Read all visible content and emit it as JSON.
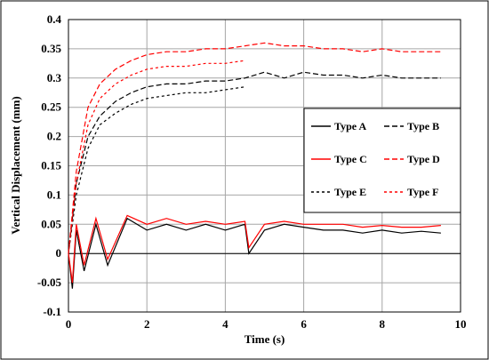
{
  "chart_data": {
    "type": "line",
    "title": "",
    "xlabel": "Time (s)",
    "ylabel": "Vertical Displacement (mm)",
    "xlim": [
      0,
      10
    ],
    "ylim": [
      -0.1,
      0.4
    ],
    "xticks": [
      0,
      2,
      4,
      6,
      8,
      10
    ],
    "yticks": [
      -0.1,
      -0.05,
      0,
      0.05,
      0.1,
      0.15,
      0.2,
      0.25,
      0.3,
      0.35,
      0.4
    ],
    "xtick_labels": [
      "0",
      "2",
      "4",
      "6",
      "8",
      "10"
    ],
    "ytick_labels": [
      "-0.1",
      "-0.05",
      "0",
      "0.05",
      "0.1",
      "0.15",
      "0.2",
      "0.25",
      "0.3",
      "0.35",
      "0.4"
    ],
    "grid": true,
    "legend_position": "right",
    "series": [
      {
        "name": "Type A",
        "color": "#000000",
        "dash": "solid",
        "x": [
          0,
          0.1,
          0.2,
          0.4,
          0.7,
          1.0,
          1.5,
          2.0,
          2.5,
          3.0,
          3.5,
          4.0,
          4.5,
          4.6,
          5.0,
          5.5,
          6.0,
          6.5,
          7.0,
          7.5,
          8.0,
          8.5,
          9.0,
          9.5
        ],
        "y": [
          0,
          -0.06,
          0.04,
          -0.03,
          0.05,
          -0.02,
          0.06,
          0.04,
          0.05,
          0.04,
          0.05,
          0.04,
          0.05,
          0.0,
          0.04,
          0.05,
          0.045,
          0.04,
          0.04,
          0.035,
          0.04,
          0.035,
          0.038,
          0.035
        ]
      },
      {
        "name": "Type B",
        "color": "#000000",
        "dash": "long",
        "x": [
          0,
          0.2,
          0.5,
          0.8,
          1.2,
          1.6,
          2.0,
          2.5,
          3.0,
          3.5,
          4.0,
          4.5,
          5.0,
          5.5,
          6.0,
          6.5,
          7.0,
          7.5,
          8.0,
          8.5,
          9.0,
          9.5
        ],
        "y": [
          0,
          0.12,
          0.2,
          0.235,
          0.26,
          0.275,
          0.285,
          0.29,
          0.29,
          0.295,
          0.295,
          0.3,
          0.31,
          0.3,
          0.31,
          0.305,
          0.305,
          0.3,
          0.305,
          0.3,
          0.3,
          0.3
        ]
      },
      {
        "name": "Type C",
        "color": "#ff0000",
        "dash": "solid",
        "x": [
          0,
          0.1,
          0.2,
          0.4,
          0.7,
          1.0,
          1.5,
          2.0,
          2.5,
          3.0,
          3.5,
          4.0,
          4.5,
          4.6,
          5.0,
          5.5,
          6.0,
          6.5,
          7.0,
          7.5,
          8.0,
          8.5,
          9.0,
          9.5
        ],
        "y": [
          0,
          -0.05,
          0.05,
          -0.02,
          0.06,
          -0.01,
          0.065,
          0.05,
          0.06,
          0.05,
          0.055,
          0.05,
          0.055,
          0.01,
          0.05,
          0.055,
          0.05,
          0.05,
          0.05,
          0.045,
          0.048,
          0.045,
          0.045,
          0.048
        ]
      },
      {
        "name": "Type D",
        "color": "#ff0000",
        "dash": "long",
        "x": [
          0,
          0.2,
          0.5,
          0.8,
          1.2,
          1.6,
          2.0,
          2.5,
          3.0,
          3.5,
          4.0,
          4.5,
          5.0,
          5.5,
          6.0,
          6.5,
          7.0,
          7.5,
          8.0,
          8.5,
          9.0,
          9.5
        ],
        "y": [
          0,
          0.14,
          0.25,
          0.29,
          0.315,
          0.33,
          0.34,
          0.345,
          0.345,
          0.35,
          0.35,
          0.355,
          0.36,
          0.355,
          0.355,
          0.35,
          0.35,
          0.345,
          0.35,
          0.345,
          0.345,
          0.345
        ]
      },
      {
        "name": "Type E",
        "color": "#000000",
        "dash": "short",
        "x": [
          0,
          0.2,
          0.5,
          0.8,
          1.2,
          1.6,
          2.0,
          2.5,
          3.0,
          3.5,
          4.0,
          4.5
        ],
        "y": [
          0,
          0.1,
          0.18,
          0.22,
          0.24,
          0.255,
          0.265,
          0.27,
          0.275,
          0.275,
          0.28,
          0.285
        ]
      },
      {
        "name": "Type F",
        "color": "#ff0000",
        "dash": "short",
        "x": [
          0,
          0.2,
          0.5,
          0.8,
          1.2,
          1.6,
          2.0,
          2.5,
          3.0,
          3.5,
          4.0,
          4.5
        ],
        "y": [
          0,
          0.12,
          0.22,
          0.265,
          0.29,
          0.305,
          0.315,
          0.32,
          0.32,
          0.325,
          0.325,
          0.33
        ]
      }
    ]
  }
}
